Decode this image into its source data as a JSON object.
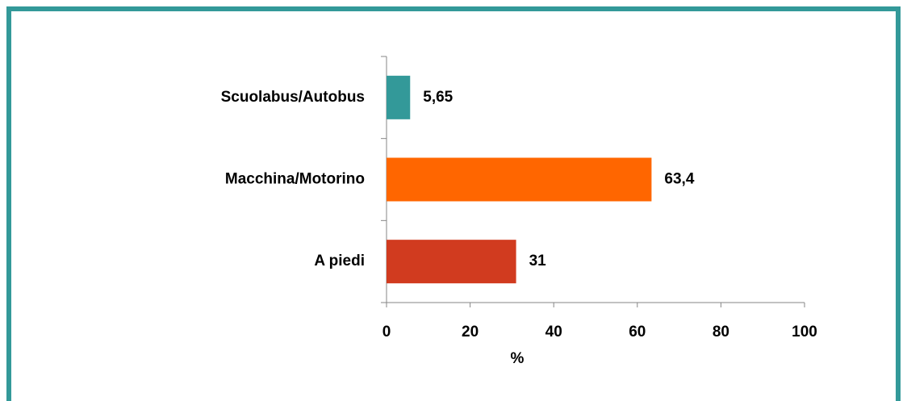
{
  "chart_data": {
    "type": "bar",
    "orientation": "horizontal",
    "categories": [
      "Scuolabus/Autobus",
      "Macchina/Motorino",
      "A piedi"
    ],
    "values": [
      5.65,
      63.4,
      31
    ],
    "value_labels": [
      "5,65",
      "63,4",
      "31"
    ],
    "colors": [
      "#339999",
      "#ff6600",
      "#d13b1f"
    ],
    "xlabel": "%",
    "xlim": [
      0,
      100
    ],
    "xticks": [
      0,
      20,
      40,
      60,
      80,
      100
    ],
    "grid": false
  }
}
